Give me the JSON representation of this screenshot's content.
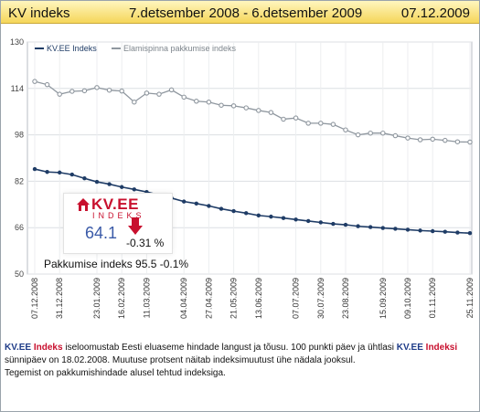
{
  "header": {
    "title": "KV indeks",
    "period": "7.detsember 2008 - 6.detsember 2009",
    "date": "07.12.2009"
  },
  "colors": {
    "kv_series": "#1f3c66",
    "pakkumine_series": "#8f979f",
    "brand_red": "#c8102e",
    "header_gold": "#f5d65a"
  },
  "badge": {
    "logo_main": "KV.EE",
    "logo_sub": "INDEKS",
    "value": "64.1",
    "change": "-0.31 %",
    "arrow_icon": "down-arrow-icon"
  },
  "pakkumise": {
    "text": "Pakkumise indeks 95.5  -0.1%"
  },
  "description": {
    "kv_word1": "KV.EE",
    "red_word1": "Indeks",
    "text1": " iseloomustab Eesti eluaseme hindade langust ja tõusu. 100 punkti päev ja ühtlasi ",
    "kv_word2": "KV.EE",
    "red_word2": "Indeksi",
    "text2": " sünnipäev on 18.02.2008. Muutuse protsent näitab indeksimuutust ühe nädala jooksul.",
    "line3": "Tegemist on pakkumishindade alusel tehtud indeksiga."
  },
  "chart_data": {
    "type": "line",
    "ylim": [
      50,
      130
    ],
    "yticks": [
      50,
      66,
      82,
      98,
      114,
      130
    ],
    "grid": true,
    "legend_position": "top-left",
    "xtick_labels": [
      "07.12.2008",
      "31.12.2008",
      "23.01.2009",
      "16.02.2009",
      "11.03.2009",
      "04.04.2009",
      "27.04.2009",
      "21.05.2009",
      "13.06.2009",
      "07.07.2009",
      "30.07.2009",
      "23.08.2009",
      "15.09.2009",
      "09.10.2009",
      "01.11.2009",
      "25.11.2009"
    ],
    "series": [
      {
        "name": "KV.EE Indeks",
        "values": [
          86.2,
          85.2,
          85.0,
          84.3,
          83.0,
          81.8,
          81.0,
          80.0,
          79.2,
          78.3,
          77.3,
          76.2,
          75.0,
          74.3,
          73.5,
          72.5,
          71.7,
          71.0,
          70.2,
          69.8,
          69.3,
          68.8,
          68.3,
          67.8,
          67.3,
          67.0,
          66.5,
          66.2,
          65.9,
          65.6,
          65.3,
          65.0,
          64.8,
          64.6,
          64.3,
          64.1
        ]
      },
      {
        "name": "Elamispinna pakkumise indeks",
        "values": [
          116.4,
          115.3,
          112.0,
          113.0,
          113.2,
          114.3,
          113.4,
          113.1,
          109.3,
          112.4,
          112.0,
          113.5,
          111.0,
          109.6,
          109.3,
          108.2,
          108.0,
          107.3,
          106.4,
          105.7,
          103.4,
          103.8,
          102.0,
          102.0,
          101.6,
          99.7,
          98.0,
          98.6,
          98.6,
          97.7,
          96.9,
          96.3,
          96.5,
          96.1,
          95.6,
          95.5
        ]
      }
    ]
  }
}
